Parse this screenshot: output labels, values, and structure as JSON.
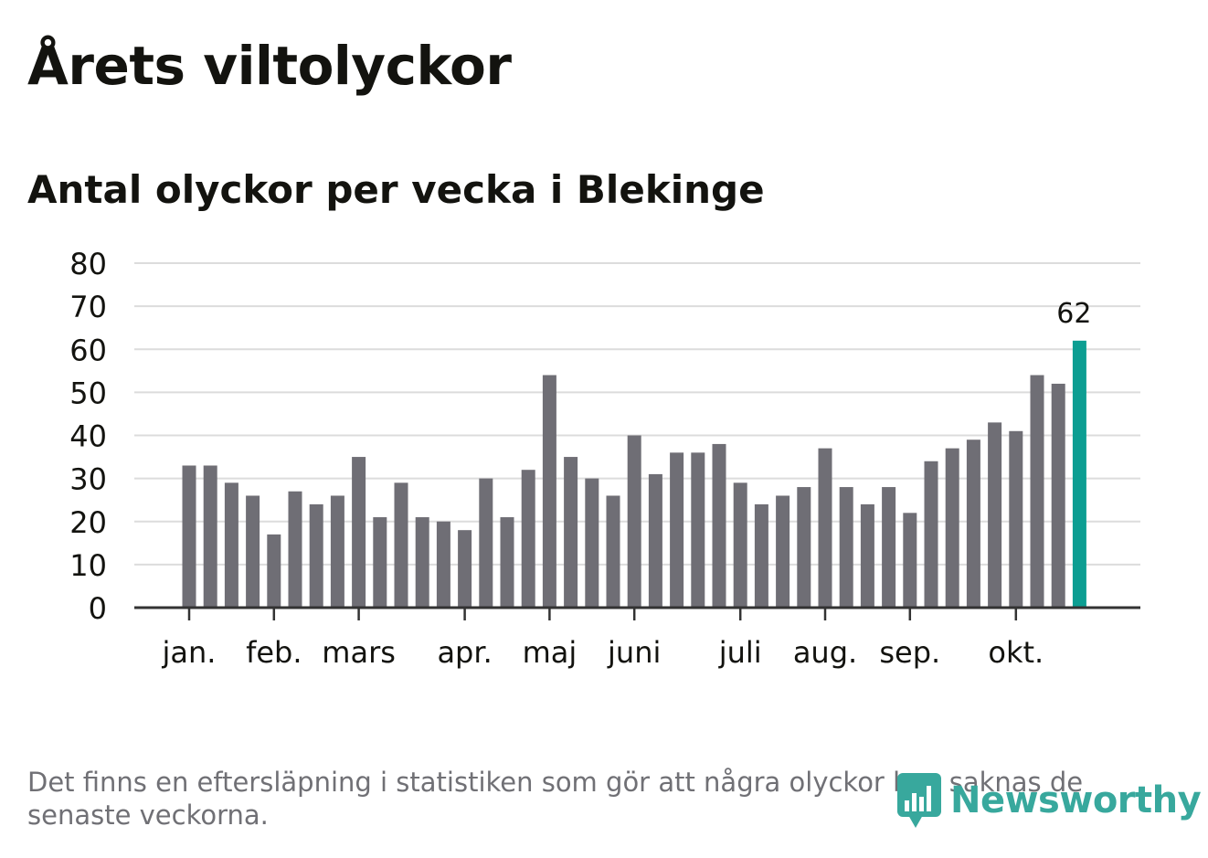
{
  "title": "Årets viltolyckor",
  "subtitle": "Antal olyckor per vecka i Blekinge",
  "footnote": "Det finns en eftersläpning i statistiken som gör att några olyckor kan saknas de senaste veckorna.",
  "logo": {
    "text": "Newsworthy",
    "icon": "newsworthy-logo-icon"
  },
  "colors": {
    "bar": "#6f6e75",
    "highlight": "#0c9e92",
    "grid": "#dcdcdc",
    "axis": "#333333",
    "text": "#13130f",
    "muted": "#707075"
  },
  "chart_data": {
    "type": "bar",
    "title": "Antal olyckor per vecka i Blekinge",
    "xlabel": "",
    "ylabel": "",
    "ylim": [
      0,
      80
    ],
    "yticks": [
      0,
      10,
      20,
      30,
      40,
      50,
      60,
      70,
      80
    ],
    "grid": true,
    "values": [
      33,
      33,
      29,
      26,
      17,
      27,
      24,
      26,
      35,
      21,
      29,
      21,
      20,
      18,
      30,
      21,
      32,
      54,
      35,
      30,
      26,
      40,
      31,
      36,
      36,
      38,
      29,
      24,
      26,
      28,
      37,
      28,
      24,
      28,
      22,
      34,
      37,
      39,
      43,
      41,
      54,
      52,
      62
    ],
    "highlight_index": 42,
    "highlight_label": "62",
    "month_labels": [
      {
        "label": "jan.",
        "week_index": 0
      },
      {
        "label": "feb.",
        "week_index": 4
      },
      {
        "label": "mars",
        "week_index": 8
      },
      {
        "label": "apr.",
        "week_index": 13
      },
      {
        "label": "maj",
        "week_index": 17
      },
      {
        "label": "juni",
        "week_index": 21
      },
      {
        "label": "juli",
        "week_index": 26
      },
      {
        "label": "aug.",
        "week_index": 30
      },
      {
        "label": "sep.",
        "week_index": 34
      },
      {
        "label": "okt.",
        "week_index": 39
      }
    ]
  }
}
